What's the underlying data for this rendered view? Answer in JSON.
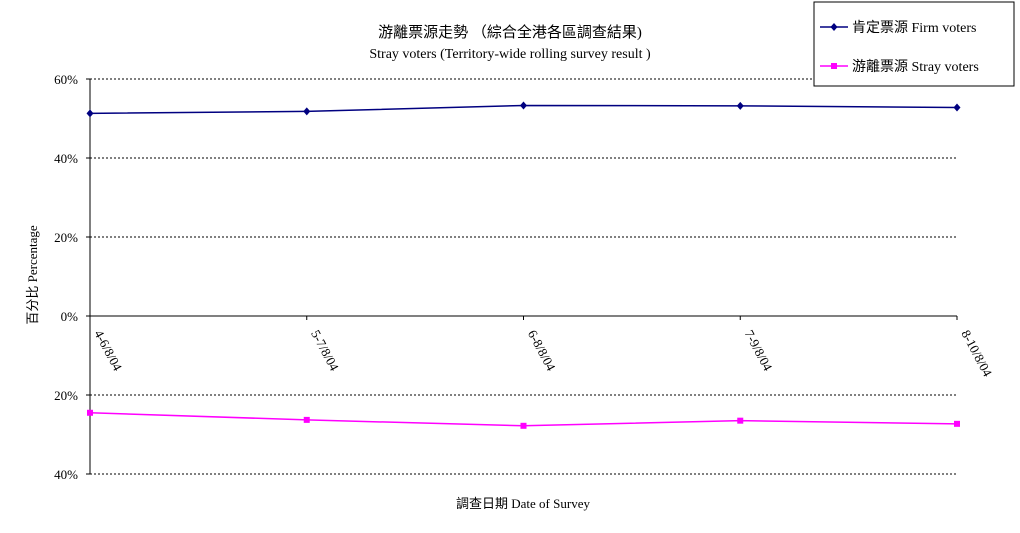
{
  "chart_data": {
    "type": "line",
    "title": "游離票源走勢 （綜合全港各區調查結果)",
    "subtitle": "Stray voters (Territory-wide rolling survey result )",
    "xlabel": "調查日期 Date of Survey",
    "ylabel": "百分比 Percentage",
    "categories": [
      "4-6/8/04",
      "5-7/8/04",
      "6-8/8/04",
      "7-9/8/04",
      "8-10/8/04"
    ],
    "ylim": [
      -40,
      60
    ],
    "yticks": [
      60,
      40,
      20,
      0,
      -20,
      -40
    ],
    "ytick_labels": [
      "60%",
      "40%",
      "20%",
      "0%",
      "20%",
      "40%"
    ],
    "grid": "horizontal dashed",
    "legend": "top-right",
    "series": [
      {
        "name": "肯定票源 Firm voters",
        "color": "#000080",
        "marker": "diamond",
        "values": [
          51.3,
          51.8,
          53.3,
          53.2,
          52.8
        ]
      },
      {
        "name": "游離票源 Stray voters",
        "color": "#FF00FF",
        "marker": "square",
        "values": [
          -24.5,
          -26.3,
          -27.8,
          -26.5,
          -27.3
        ]
      }
    ]
  }
}
